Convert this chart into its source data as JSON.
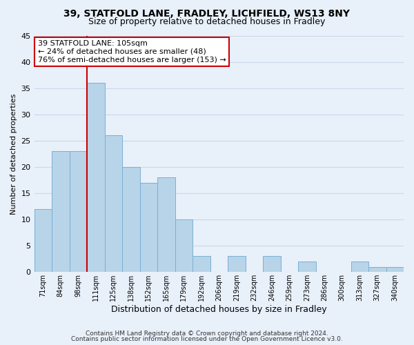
{
  "title": "39, STATFOLD LANE, FRADLEY, LICHFIELD, WS13 8NY",
  "subtitle": "Size of property relative to detached houses in Fradley",
  "xlabel": "Distribution of detached houses by size in Fradley",
  "ylabel": "Number of detached properties",
  "bar_labels": [
    "71sqm",
    "84sqm",
    "98sqm",
    "111sqm",
    "125sqm",
    "138sqm",
    "152sqm",
    "165sqm",
    "179sqm",
    "192sqm",
    "206sqm",
    "219sqm",
    "232sqm",
    "246sqm",
    "259sqm",
    "273sqm",
    "286sqm",
    "300sqm",
    "313sqm",
    "327sqm",
    "340sqm"
  ],
  "bar_values": [
    12,
    23,
    23,
    36,
    26,
    20,
    17,
    18,
    10,
    3,
    0,
    3,
    0,
    3,
    0,
    2,
    0,
    0,
    2,
    1,
    1
  ],
  "bar_color": "#b8d4e8",
  "bar_edge_color": "#7aafd4",
  "grid_color": "#c8d8ea",
  "background_color": "#e8f0fa",
  "vline_color": "#cc0000",
  "annotation_title": "39 STATFOLD LANE: 105sqm",
  "annotation_line1": "← 24% of detached houses are smaller (48)",
  "annotation_line2": "76% of semi-detached houses are larger (153) →",
  "annotation_box_color": "#ffffff",
  "annotation_box_edge": "#cc0000",
  "ylim": [
    0,
    45
  ],
  "yticks": [
    0,
    5,
    10,
    15,
    20,
    25,
    30,
    35,
    40,
    45
  ],
  "footer1": "Contains HM Land Registry data © Crown copyright and database right 2024.",
  "footer2": "Contains public sector information licensed under the Open Government Licence v3.0."
}
